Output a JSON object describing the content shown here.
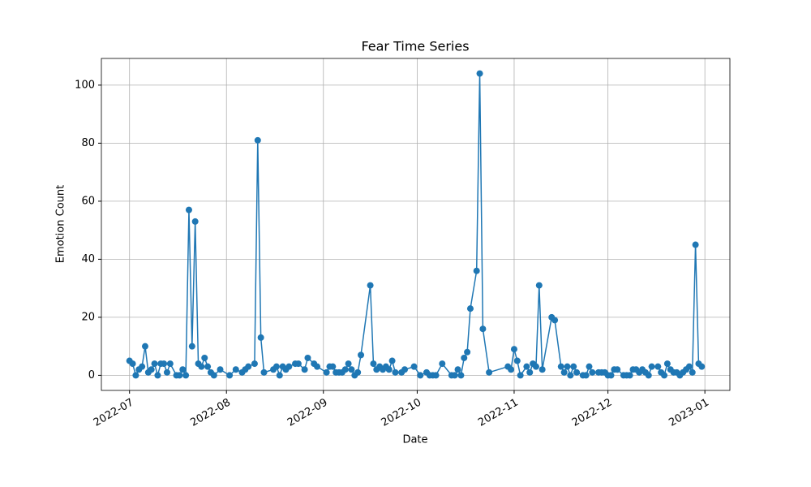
{
  "chart_data": {
    "type": "line",
    "title": "Fear Time Series",
    "xlabel": "Date",
    "ylabel": "Emotion Count",
    "x": [
      "2022-07-01",
      "2022-07-02",
      "2022-07-03",
      "2022-07-04",
      "2022-07-05",
      "2022-07-06",
      "2022-07-07",
      "2022-07-08",
      "2022-07-09",
      "2022-07-10",
      "2022-07-11",
      "2022-07-12",
      "2022-07-13",
      "2022-07-14",
      "2022-07-16",
      "2022-07-17",
      "2022-07-18",
      "2022-07-19",
      "2022-07-20",
      "2022-07-21",
      "2022-07-22",
      "2022-07-23",
      "2022-07-24",
      "2022-07-25",
      "2022-07-26",
      "2022-07-27",
      "2022-07-28",
      "2022-07-30",
      "2022-08-02",
      "2022-08-04",
      "2022-08-06",
      "2022-08-07",
      "2022-08-08",
      "2022-08-10",
      "2022-08-11",
      "2022-08-12",
      "2022-08-13",
      "2022-08-16",
      "2022-08-17",
      "2022-08-18",
      "2022-08-19",
      "2022-08-20",
      "2022-08-21",
      "2022-08-23",
      "2022-08-24",
      "2022-08-26",
      "2022-08-27",
      "2022-08-29",
      "2022-08-30",
      "2022-09-02",
      "2022-09-03",
      "2022-09-04",
      "2022-09-05",
      "2022-09-06",
      "2022-09-07",
      "2022-09-08",
      "2022-09-09",
      "2022-09-10",
      "2022-09-11",
      "2022-09-12",
      "2022-09-13",
      "2022-09-16",
      "2022-09-17",
      "2022-09-18",
      "2022-09-19",
      "2022-09-20",
      "2022-09-21",
      "2022-09-22",
      "2022-09-23",
      "2022-09-24",
      "2022-09-26",
      "2022-09-27",
      "2022-09-30",
      "2022-10-02",
      "2022-10-04",
      "2022-10-05",
      "2022-10-06",
      "2022-10-07",
      "2022-10-09",
      "2022-10-12",
      "2022-10-13",
      "2022-10-14",
      "2022-10-15",
      "2022-10-16",
      "2022-10-17",
      "2022-10-18",
      "2022-10-20",
      "2022-10-21",
      "2022-10-22",
      "2022-10-24",
      "2022-10-30",
      "2022-10-31",
      "2022-11-01",
      "2022-11-02",
      "2022-11-03",
      "2022-11-05",
      "2022-11-06",
      "2022-11-07",
      "2022-11-08",
      "2022-11-09",
      "2022-11-10",
      "2022-11-13",
      "2022-11-14",
      "2022-11-16",
      "2022-11-17",
      "2022-11-18",
      "2022-11-19",
      "2022-11-20",
      "2022-11-21",
      "2022-11-23",
      "2022-11-24",
      "2022-11-25",
      "2022-11-26",
      "2022-11-28",
      "2022-11-29",
      "2022-11-30",
      "2022-12-01",
      "2022-12-02",
      "2022-12-03",
      "2022-12-04",
      "2022-12-06",
      "2022-12-07",
      "2022-12-08",
      "2022-12-09",
      "2022-12-10",
      "2022-12-11",
      "2022-12-12",
      "2022-12-13",
      "2022-12-14",
      "2022-12-15",
      "2022-12-17",
      "2022-12-18",
      "2022-12-19",
      "2022-12-20",
      "2022-12-21",
      "2022-12-22",
      "2022-12-23",
      "2022-12-24",
      "2022-12-25",
      "2022-12-26",
      "2022-12-27",
      "2022-12-28",
      "2022-12-29",
      "2022-12-30",
      "2022-12-31"
    ],
    "series": [
      {
        "color": "#1f77b4",
        "values": [
          5,
          4,
          0,
          2,
          3,
          10,
          1,
          2,
          4,
          0,
          4,
          4,
          1,
          4,
          0,
          0,
          2,
          0,
          57,
          10,
          53,
          4,
          3,
          6,
          3,
          1,
          0,
          2,
          0,
          2,
          1,
          2,
          3,
          4,
          81,
          13,
          1,
          2,
          3,
          0,
          3,
          2,
          3,
          4,
          4,
          2,
          6,
          4,
          3,
          1,
          3,
          3,
          1,
          1,
          1,
          2,
          4,
          2,
          0,
          1,
          7,
          31,
          4,
          2,
          3,
          2,
          3,
          2,
          5,
          1,
          1,
          2,
          3,
          0,
          1,
          0,
          0,
          0,
          4,
          0,
          0,
          2,
          0,
          6,
          8,
          23,
          36,
          104,
          16,
          1,
          3,
          2,
          9,
          5,
          0,
          3,
          1,
          4,
          3,
          31,
          2,
          20,
          19,
          3,
          1,
          3,
          0,
          3,
          1,
          0,
          0,
          3,
          1,
          1,
          1,
          1,
          0,
          0,
          2,
          2,
          0,
          0,
          0,
          2,
          2,
          1,
          2,
          1,
          0,
          3,
          3,
          1,
          0,
          4,
          2,
          1,
          1,
          0,
          1,
          2,
          3,
          1,
          45,
          4,
          3
        ]
      }
    ],
    "xlim": [
      "2022-06-22",
      "2023-01-09"
    ],
    "xticks": [
      {
        "value": "2022-07-01",
        "label": "2022-07"
      },
      {
        "value": "2022-08-01",
        "label": "2022-08"
      },
      {
        "value": "2022-09-01",
        "label": "2022-09"
      },
      {
        "value": "2022-10-01",
        "label": "2022-10"
      },
      {
        "value": "2022-11-01",
        "label": "2022-11"
      },
      {
        "value": "2022-12-01",
        "label": "2022-12"
      },
      {
        "value": "2023-01-01",
        "label": "2023-01"
      }
    ],
    "ylim": [
      -5.2,
      109.2
    ],
    "yticks": [
      0,
      20,
      40,
      60,
      80,
      100
    ],
    "grid": true
  }
}
